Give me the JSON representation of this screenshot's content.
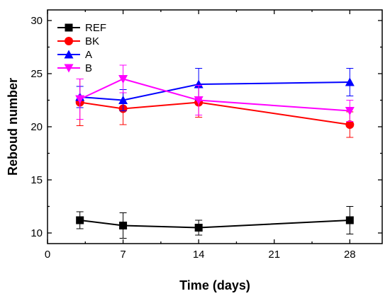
{
  "chart_data": {
    "type": "line",
    "title": "",
    "xlabel": "Time (days)",
    "ylabel": "Reboud number",
    "xlim": [
      0,
      31
    ],
    "ylim": [
      9,
      31
    ],
    "xticks": [
      0,
      7,
      14,
      21,
      28
    ],
    "xtick_labels": [
      "0",
      "7",
      "14",
      "21",
      "28"
    ],
    "yticks": [
      10,
      15,
      20,
      25,
      30
    ],
    "ytick_labels": [
      "10",
      "15",
      "20",
      "25",
      "30"
    ],
    "grid": false,
    "legend_position": "top-left",
    "x": [
      3,
      7,
      14,
      28
    ],
    "series": [
      {
        "name": "REF",
        "color": "#000000",
        "marker": "square",
        "values": [
          11.2,
          10.7,
          10.5,
          11.2
        ],
        "errors": [
          0.8,
          1.2,
          0.7,
          1.3
        ]
      },
      {
        "name": "BK",
        "color": "#ff0000",
        "marker": "circle",
        "values": [
          22.3,
          21.7,
          22.3,
          20.2
        ],
        "errors": [
          2.2,
          1.5,
          1.4,
          1.2
        ]
      },
      {
        "name": "A",
        "color": "#0000ff",
        "marker": "triangle-up",
        "values": [
          22.8,
          22.5,
          24.0,
          24.2
        ],
        "errors": [
          1.0,
          1.0,
          1.5,
          1.3
        ]
      },
      {
        "name": "B",
        "color": "#ff00ff",
        "marker": "triangle-down",
        "values": [
          22.6,
          24.5,
          22.5,
          21.5
        ],
        "errors": [
          1.9,
          1.3,
          1.4,
          1.0
        ]
      }
    ]
  }
}
